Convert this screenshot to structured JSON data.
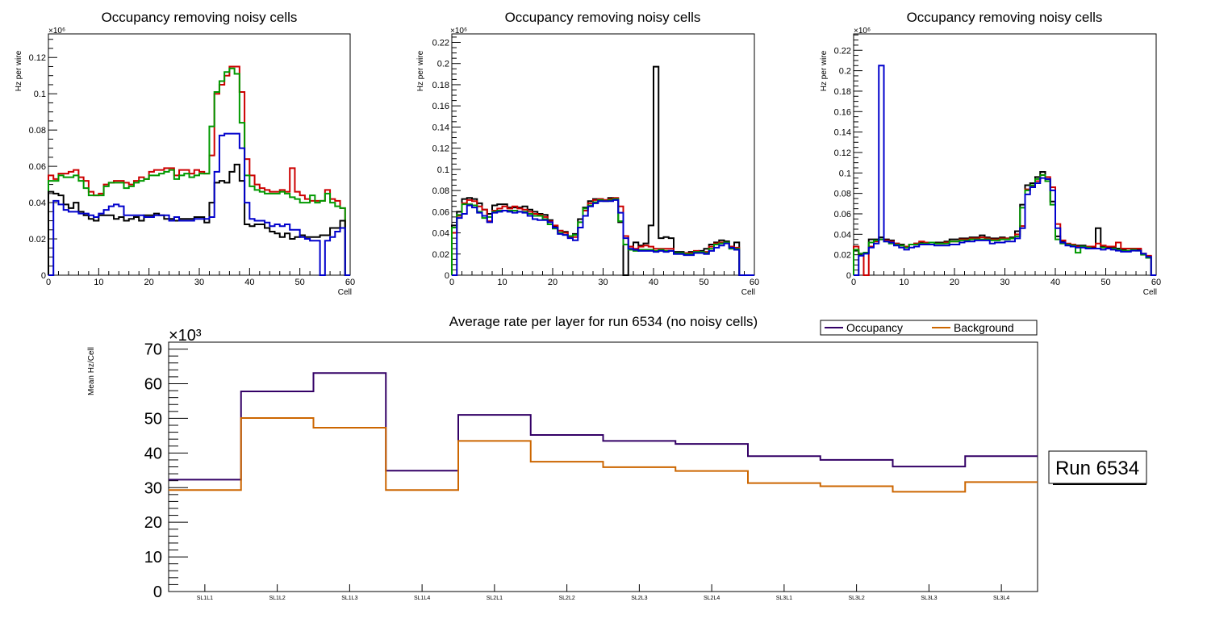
{
  "colors": {
    "black": "#000000",
    "red": "#cc0000",
    "green": "#009900",
    "blue": "#0000cc",
    "occupancy": "#330066",
    "background": "#cc6600"
  },
  "chart_data": [
    {
      "type": "line",
      "title": "Occupancy removing noisy cells",
      "xlabel": "Cell",
      "ylabel": "Hz per wire",
      "yexponent": "×10⁶",
      "xlim": [
        0,
        60
      ],
      "ylim": [
        0,
        0.133
      ],
      "xticks": [
        "0",
        "10",
        "20",
        "30",
        "40",
        "50",
        "60"
      ],
      "yticks": [
        "0",
        "0.02",
        "0.04",
        "0.06",
        "0.08",
        "0.1",
        "0.12"
      ],
      "ytick_values": [
        0,
        0.02,
        0.04,
        0.06,
        0.08,
        0.1,
        0.12
      ],
      "series": [
        {
          "name": "red",
          "color": "#cc0000",
          "values": [
            0.055,
            0.053,
            0.056,
            0.056,
            0.057,
            0.058,
            0.054,
            0.052,
            0.046,
            0.044,
            0.045,
            0.05,
            0.051,
            0.052,
            0.052,
            0.051,
            0.05,
            0.052,
            0.054,
            0.053,
            0.057,
            0.058,
            0.058,
            0.059,
            0.059,
            0.055,
            0.058,
            0.058,
            0.056,
            0.058,
            0.057,
            0.056,
            0.066,
            0.1,
            0.105,
            0.11,
            0.115,
            0.115,
            0.101,
            0.064,
            0.055,
            0.05,
            0.048,
            0.047,
            0.046,
            0.046,
            0.047,
            0.046,
            0.059,
            0.046,
            0.044,
            0.042,
            0.041,
            0.041,
            0.041,
            0.047,
            0.042,
            0.041,
            0.037
          ]
        },
        {
          "name": "green",
          "color": "#009900",
          "values": [
            0.052,
            0.052,
            0.055,
            0.054,
            0.054,
            0.055,
            0.052,
            0.048,
            0.044,
            0.044,
            0.044,
            0.049,
            0.051,
            0.051,
            0.051,
            0.048,
            0.049,
            0.051,
            0.052,
            0.053,
            0.055,
            0.055,
            0.056,
            0.057,
            0.058,
            0.053,
            0.055,
            0.056,
            0.054,
            0.055,
            0.056,
            0.056,
            0.082,
            0.101,
            0.107,
            0.112,
            0.114,
            0.111,
            0.084,
            0.055,
            0.049,
            0.047,
            0.046,
            0.045,
            0.045,
            0.045,
            0.046,
            0.045,
            0.043,
            0.042,
            0.04,
            0.04,
            0.044,
            0.04,
            0.041,
            0.045,
            0.04,
            0.038,
            0.037
          ]
        },
        {
          "name": "black",
          "color": "#000000",
          "values": [
            0.046,
            0.045,
            0.044,
            0.039,
            0.037,
            0.04,
            0.035,
            0.033,
            0.031,
            0.03,
            0.033,
            0.033,
            0.033,
            0.031,
            0.032,
            0.03,
            0.031,
            0.032,
            0.03,
            0.033,
            0.033,
            0.034,
            0.033,
            0.031,
            0.031,
            0.03,
            0.031,
            0.031,
            0.031,
            0.032,
            0.032,
            0.029,
            0.04,
            0.051,
            0.052,
            0.051,
            0.057,
            0.061,
            0.052,
            0.028,
            0.027,
            0.028,
            0.028,
            0.026,
            0.024,
            0.023,
            0.021,
            0.023,
            0.02,
            0.021,
            0.022,
            0.021,
            0.021,
            0.021,
            0.022,
            0.022,
            0.026,
            0.026,
            0.03
          ]
        },
        {
          "name": "blue",
          "color": "#0000cc",
          "values": [
            0.0,
            0.041,
            0.039,
            0.036,
            0.035,
            0.035,
            0.034,
            0.034,
            0.033,
            0.032,
            0.034,
            0.036,
            0.038,
            0.039,
            0.038,
            0.033,
            0.033,
            0.033,
            0.033,
            0.032,
            0.032,
            0.033,
            0.033,
            0.033,
            0.03,
            0.032,
            0.03,
            0.03,
            0.03,
            0.031,
            0.031,
            0.031,
            0.032,
            0.057,
            0.077,
            0.078,
            0.078,
            0.078,
            0.07,
            0.04,
            0.031,
            0.03,
            0.03,
            0.029,
            0.027,
            0.028,
            0.027,
            0.028,
            0.025,
            0.025,
            0.021,
            0.02,
            0.019,
            0.019,
            0.0,
            0.019,
            0.021,
            0.024,
            0.026
          ]
        }
      ]
    },
    {
      "type": "line",
      "title": "Occupancy removing noisy cells",
      "xlabel": "Cell",
      "ylabel": "Hz per wire",
      "yexponent": "×10⁶",
      "xlim": [
        0,
        60
      ],
      "ylim": [
        0,
        0.228
      ],
      "xticks": [
        "0",
        "10",
        "20",
        "30",
        "40",
        "50",
        "60"
      ],
      "yticks": [
        "0",
        "0.02",
        "0.04",
        "0.06",
        "0.08",
        "0.1",
        "0.12",
        "0.14",
        "0.16",
        "0.18",
        "0.2",
        "0.22"
      ],
      "ytick_values": [
        0,
        0.02,
        0.04,
        0.06,
        0.08,
        0.1,
        0.12,
        0.14,
        0.16,
        0.18,
        0.2,
        0.22
      ],
      "series": [
        {
          "name": "black",
          "color": "#000000",
          "values": [
            0.047,
            0.06,
            0.072,
            0.073,
            0.072,
            0.068,
            0.062,
            0.058,
            0.066,
            0.067,
            0.067,
            0.064,
            0.064,
            0.064,
            0.065,
            0.062,
            0.06,
            0.058,
            0.057,
            0.052,
            0.046,
            0.042,
            0.041,
            0.037,
            0.039,
            0.053,
            0.064,
            0.07,
            0.072,
            0.072,
            0.071,
            0.073,
            0.072,
            0.05,
            0.0,
            0.027,
            0.031,
            0.028,
            0.03,
            0.047,
            0.197,
            0.035,
            0.036,
            0.035,
            0.022,
            0.022,
            0.021,
            0.022,
            0.022,
            0.023,
            0.025,
            0.029,
            0.031,
            0.033,
            0.032,
            0.027,
            0.031,
            0.0,
            0.0,
            0.0
          ]
        },
        {
          "name": "red",
          "color": "#cc0000",
          "values": [
            0.04,
            0.056,
            0.068,
            0.071,
            0.07,
            0.065,
            0.062,
            0.051,
            0.061,
            0.063,
            0.065,
            0.063,
            0.065,
            0.063,
            0.062,
            0.06,
            0.058,
            0.057,
            0.055,
            0.051,
            0.047,
            0.042,
            0.04,
            0.036,
            0.036,
            0.045,
            0.061,
            0.068,
            0.071,
            0.072,
            0.071,
            0.072,
            0.073,
            0.065,
            0.037,
            0.027,
            0.025,
            0.027,
            0.028,
            0.027,
            0.025,
            0.025,
            0.025,
            0.025,
            0.021,
            0.021,
            0.021,
            0.021,
            0.023,
            0.022,
            0.022,
            0.027,
            0.03,
            0.031,
            0.031,
            0.027,
            0.026,
            0.0,
            0.0,
            0.0
          ]
        },
        {
          "name": "green",
          "color": "#009900",
          "values": [
            0.045,
            0.057,
            0.067,
            0.067,
            0.066,
            0.06,
            0.054,
            0.055,
            0.06,
            0.061,
            0.061,
            0.061,
            0.061,
            0.06,
            0.06,
            0.058,
            0.056,
            0.056,
            0.053,
            0.048,
            0.044,
            0.04,
            0.038,
            0.037,
            0.038,
            0.05,
            0.063,
            0.066,
            0.069,
            0.071,
            0.07,
            0.071,
            0.072,
            0.051,
            0.029,
            0.024,
            0.023,
            0.024,
            0.024,
            0.024,
            0.023,
            0.024,
            0.023,
            0.023,
            0.021,
            0.021,
            0.02,
            0.02,
            0.022,
            0.022,
            0.021,
            0.025,
            0.029,
            0.03,
            0.031,
            0.025,
            0.025,
            0.0,
            0.0,
            0.0
          ]
        },
        {
          "name": "blue",
          "color": "#0000cc",
          "values": [
            0.0,
            0.054,
            0.058,
            0.066,
            0.064,
            0.059,
            0.056,
            0.05,
            0.059,
            0.06,
            0.061,
            0.06,
            0.059,
            0.06,
            0.059,
            0.056,
            0.053,
            0.052,
            0.052,
            0.05,
            0.045,
            0.039,
            0.038,
            0.035,
            0.033,
            0.045,
            0.056,
            0.065,
            0.068,
            0.07,
            0.07,
            0.07,
            0.071,
            0.059,
            0.035,
            0.025,
            0.024,
            0.023,
            0.023,
            0.023,
            0.022,
            0.023,
            0.022,
            0.023,
            0.02,
            0.02,
            0.019,
            0.019,
            0.021,
            0.021,
            0.02,
            0.023,
            0.026,
            0.028,
            0.03,
            0.026,
            0.024,
            0.0,
            0.0,
            0.0
          ]
        }
      ]
    },
    {
      "type": "line",
      "title": "Occupancy removing noisy cells",
      "xlabel": "Cell",
      "ylabel": "Hz per wire",
      "yexponent": "×10⁶",
      "xlim": [
        0,
        60
      ],
      "ylim": [
        0,
        0.236
      ],
      "xticks": [
        "0",
        "10",
        "20",
        "30",
        "40",
        "50",
        "60"
      ],
      "yticks": [
        "0",
        "0.02",
        "0.04",
        "0.06",
        "0.08",
        "0.1",
        "0.12",
        "0.14",
        "0.16",
        "0.18",
        "0.2",
        "0.22"
      ],
      "ytick_values": [
        0,
        0.02,
        0.04,
        0.06,
        0.08,
        0.1,
        0.12,
        0.14,
        0.16,
        0.18,
        0.2,
        0.22
      ],
      "series": [
        {
          "name": "black",
          "color": "#000000",
          "values": [
            0.024,
            0.021,
            0.022,
            0.035,
            0.035,
            0.037,
            0.035,
            0.034,
            0.031,
            0.03,
            0.028,
            0.03,
            0.031,
            0.032,
            0.032,
            0.032,
            0.032,
            0.032,
            0.033,
            0.035,
            0.035,
            0.036,
            0.036,
            0.037,
            0.037,
            0.039,
            0.037,
            0.036,
            0.036,
            0.037,
            0.036,
            0.037,
            0.043,
            0.069,
            0.088,
            0.09,
            0.096,
            0.101,
            0.094,
            0.072,
            0.038,
            0.033,
            0.03,
            0.03,
            0.029,
            0.029,
            0.028,
            0.027,
            0.046,
            0.028,
            0.027,
            0.027,
            0.026,
            0.025,
            0.026,
            0.026,
            0.025,
            0.021,
            0.018,
            0.0
          ]
        },
        {
          "name": "red",
          "color": "#cc0000",
          "values": [
            0.028,
            0.021,
            0.0,
            0.028,
            0.033,
            0.035,
            0.034,
            0.033,
            0.031,
            0.029,
            0.028,
            0.03,
            0.031,
            0.033,
            0.032,
            0.032,
            0.031,
            0.031,
            0.032,
            0.033,
            0.033,
            0.035,
            0.035,
            0.036,
            0.036,
            0.037,
            0.036,
            0.035,
            0.035,
            0.036,
            0.036,
            0.036,
            0.04,
            0.048,
            0.084,
            0.087,
            0.092,
            0.098,
            0.096,
            0.086,
            0.05,
            0.034,
            0.031,
            0.03,
            0.028,
            0.028,
            0.028,
            0.028,
            0.031,
            0.029,
            0.028,
            0.028,
            0.032,
            0.026,
            0.026,
            0.026,
            0.026,
            0.021,
            0.019,
            0.0
          ]
        },
        {
          "name": "green",
          "color": "#009900",
          "values": [
            0.025,
            0.021,
            0.022,
            0.032,
            0.034,
            0.035,
            0.033,
            0.031,
            0.03,
            0.029,
            0.027,
            0.03,
            0.03,
            0.031,
            0.031,
            0.032,
            0.031,
            0.031,
            0.031,
            0.033,
            0.033,
            0.034,
            0.034,
            0.035,
            0.035,
            0.035,
            0.035,
            0.034,
            0.034,
            0.035,
            0.035,
            0.036,
            0.038,
            0.066,
            0.083,
            0.088,
            0.094,
            0.098,
            0.092,
            0.069,
            0.035,
            0.031,
            0.03,
            0.029,
            0.022,
            0.028,
            0.027,
            0.026,
            0.026,
            0.027,
            0.026,
            0.026,
            0.025,
            0.024,
            0.024,
            0.025,
            0.024,
            0.02,
            0.017,
            0.0
          ]
        },
        {
          "name": "blue",
          "color": "#0000cc",
          "values": [
            0.0,
            0.019,
            0.021,
            0.027,
            0.031,
            0.205,
            0.033,
            0.032,
            0.029,
            0.027,
            0.025,
            0.027,
            0.028,
            0.03,
            0.03,
            0.03,
            0.029,
            0.029,
            0.029,
            0.03,
            0.03,
            0.032,
            0.033,
            0.033,
            0.034,
            0.034,
            0.034,
            0.031,
            0.032,
            0.032,
            0.033,
            0.033,
            0.036,
            0.046,
            0.079,
            0.086,
            0.09,
            0.095,
            0.094,
            0.083,
            0.046,
            0.032,
            0.029,
            0.028,
            0.027,
            0.027,
            0.026,
            0.026,
            0.026,
            0.025,
            0.026,
            0.025,
            0.024,
            0.023,
            0.023,
            0.024,
            0.024,
            0.021,
            0.018,
            0.0
          ]
        }
      ]
    },
    {
      "type": "line",
      "title": "Average rate per layer for run 6534 (no noisy cells)",
      "xlabel": "",
      "ylabel": "Mean Hz/Cell",
      "yexponent": "×10³",
      "categories": [
        "SL1L1",
        "SL1L2",
        "SL1L3",
        "SL1L4",
        "SL2L1",
        "SL2L2",
        "SL2L3",
        "SL2L4",
        "SL3L1",
        "SL3L2",
        "SL3L3",
        "SL3L4"
      ],
      "ylim": [
        0,
        72
      ],
      "yticks": [
        "0",
        "10",
        "20",
        "30",
        "40",
        "50",
        "60",
        "70"
      ],
      "ytick_values": [
        0,
        10,
        20,
        30,
        40,
        50,
        60,
        70
      ],
      "legend": {
        "position": "top-right",
        "entries": [
          "Occupancy",
          "Background"
        ]
      },
      "annotation": "Run 6534",
      "series": [
        {
          "name": "Occupancy",
          "color": "#330066",
          "values": [
            32.3,
            57.8,
            63.1,
            34.9,
            51.0,
            45.2,
            43.5,
            42.6,
            39.1,
            38.0,
            36.1,
            39.1
          ]
        },
        {
          "name": "Background",
          "color": "#cc6600",
          "values": [
            29.3,
            50.1,
            47.3,
            29.3,
            43.5,
            37.5,
            35.9,
            34.8,
            31.3,
            30.4,
            28.8,
            31.6
          ]
        }
      ]
    }
  ]
}
